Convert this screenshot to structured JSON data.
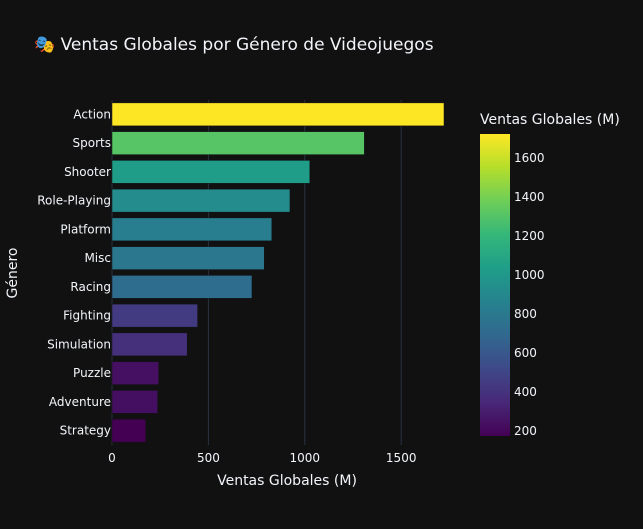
{
  "chart_data": {
    "type": "bar",
    "orientation": "horizontal",
    "title": "🎭 Ventas Globales por Género de Videojuegos",
    "xlabel": "Ventas Globales (M)",
    "ylabel": "Género",
    "categories": [
      "Action",
      "Sports",
      "Shooter",
      "Role-Playing",
      "Platform",
      "Misc",
      "Racing",
      "Fighting",
      "Simulation",
      "Puzzle",
      "Adventure",
      "Strategy"
    ],
    "values": [
      1722,
      1309,
      1026,
      923,
      829,
      790,
      726,
      444,
      390,
      242,
      237,
      175
    ],
    "xlim": [
      0,
      1722
    ],
    "x_ticks": [
      0,
      500,
      1000,
      1500
    ],
    "grid": true,
    "colorscale": "Viridis",
    "colorbar": {
      "title": "Ventas Globales (M)",
      "range": [
        175,
        1722
      ],
      "ticks": [
        200,
        400,
        600,
        800,
        1000,
        1200,
        1400,
        1600
      ]
    }
  },
  "colors": {
    "background": "#111111",
    "grid": "#283442",
    "text": "#f2f5fa"
  }
}
